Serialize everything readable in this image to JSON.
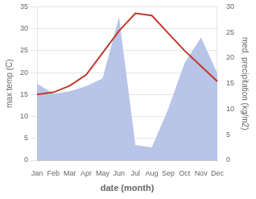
{
  "chart_data": {
    "type": "line",
    "categories": [
      "Jan",
      "Feb",
      "Mar",
      "Apr",
      "May",
      "Jun",
      "Jul",
      "Aug",
      "Sep",
      "Oct",
      "Nov",
      "Dec"
    ],
    "xlabel": "date (month)",
    "ylabel": "max temp (C)",
    "y2label": "med. precipitation (kg/m2)",
    "series": [
      {
        "type": "area",
        "color": "#b8c4e8",
        "axis": "y2",
        "values": [
          15.0,
          13.0,
          13.5,
          14.5,
          16.0,
          28.0,
          3.0,
          2.5,
          10.0,
          19.0,
          24.0,
          17.0
        ]
      },
      {
        "type": "line",
        "color": "#c0392b",
        "values": [
          15.0,
          15.5,
          17.0,
          19.5,
          24.5,
          29.5,
          33.5,
          33.0,
          29.0,
          25.0,
          21.5,
          18.0
        ]
      }
    ],
    "ylim": [
      0,
      35
    ],
    "yticks": [
      0,
      5,
      10,
      15,
      20,
      25,
      30,
      35
    ],
    "y2lim": [
      0,
      30
    ],
    "y2ticks": [
      0,
      5,
      10,
      15,
      20,
      25,
      30
    ],
    "grid": true
  }
}
